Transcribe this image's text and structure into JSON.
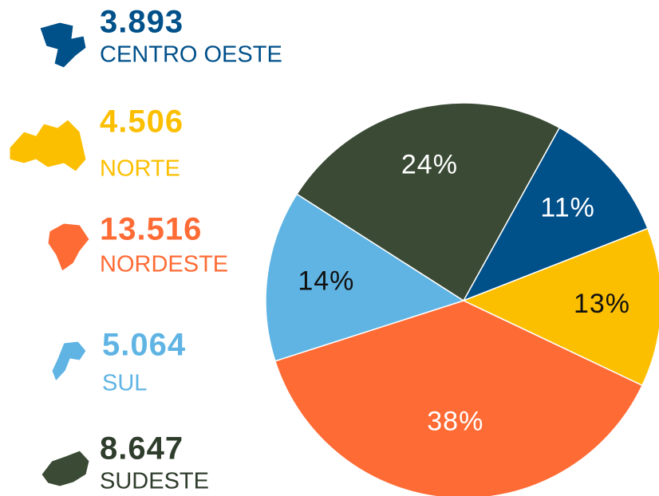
{
  "chart_data": {
    "type": "pie",
    "categories": [
      "CENTRO OESTE",
      "NORTE",
      "NORDESTE",
      "SUL",
      "SUDESTE"
    ],
    "counts": [
      3893,
      4506,
      13516,
      5064,
      8647
    ],
    "count_labels": [
      "3.893",
      "4.506",
      "13.516",
      "5.064",
      "8.647"
    ],
    "values": [
      11,
      13,
      38,
      14,
      24
    ],
    "value_labels": [
      "11%",
      "13%",
      "38%",
      "14%",
      "24%"
    ],
    "colors": [
      "#00508a",
      "#fcbf00",
      "#ff6b35",
      "#5fb4e4",
      "#3a4a35"
    ],
    "label_colors": [
      "#ffffff",
      "#111111",
      "#ffffff",
      "#111111",
      "#ffffff"
    ]
  }
}
